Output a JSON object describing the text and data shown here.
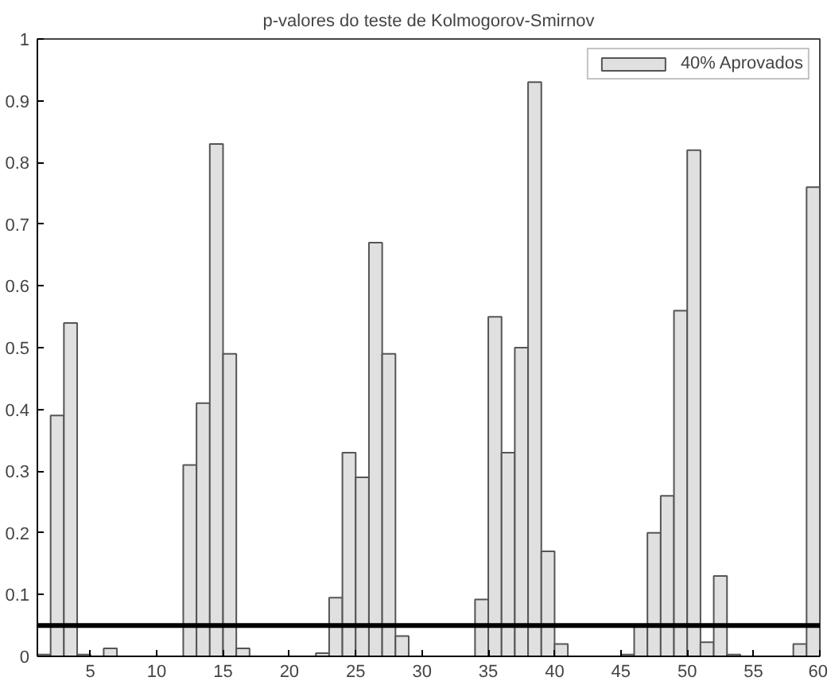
{
  "chart_data": {
    "type": "bar",
    "title": "p-valores do teste de Kolmogorov-Smirnov",
    "x": [
      1.5,
      2.5,
      3.5,
      4.5,
      5.5,
      6.5,
      7.5,
      8.5,
      9.5,
      10.5,
      11.5,
      12.5,
      13.5,
      14.5,
      15.5,
      16.5,
      17.5,
      18.5,
      19.5,
      20.5,
      21.5,
      22.5,
      23.5,
      24.5,
      25.5,
      26.5,
      27.5,
      28.5,
      29.5,
      30.5,
      31.5,
      32.5,
      33.5,
      34.5,
      35.5,
      36.5,
      37.5,
      38.5,
      39.5,
      40.5,
      41.5,
      42.5,
      43.5,
      44.5,
      45.5,
      46.5,
      47.5,
      48.5,
      49.5,
      50.5,
      51.5,
      52.5,
      53.5,
      54.5,
      55.5,
      56.5,
      57.5,
      58.5,
      59.5
    ],
    "series": [
      {
        "name": "40% Aprovados",
        "color": "#e0e0e0",
        "values": [
          0.003,
          0.39,
          0.54,
          0.003,
          null,
          0.013,
          null,
          null,
          null,
          null,
          null,
          0.31,
          0.41,
          0.83,
          0.49,
          0.013,
          null,
          null,
          null,
          null,
          null,
          0.005,
          0.095,
          0.33,
          0.29,
          0.67,
          0.49,
          0.033,
          null,
          null,
          null,
          null,
          null,
          0.092,
          0.55,
          0.33,
          0.5,
          0.93,
          0.17,
          0.02,
          null,
          null,
          null,
          null,
          0.003,
          0.048,
          0.2,
          0.26,
          0.56,
          0.82,
          0.023,
          0.13,
          0.003,
          null,
          null,
          null,
          null,
          0.02,
          0.76
        ]
      }
    ],
    "xlim": [
      1,
      60
    ],
    "xticks": [
      5,
      10,
      15,
      20,
      25,
      30,
      35,
      40,
      45,
      50,
      55,
      60
    ],
    "ylim": [
      0,
      1
    ],
    "yticks": [
      0,
      0.1,
      0.2,
      0.3,
      0.4,
      0.5,
      0.6,
      0.7,
      0.8,
      0.9,
      1
    ],
    "ref_lines": [
      {
        "axis": "y",
        "value": 0.05,
        "color": "#000000"
      }
    ],
    "legend": "top right",
    "grid": false
  }
}
